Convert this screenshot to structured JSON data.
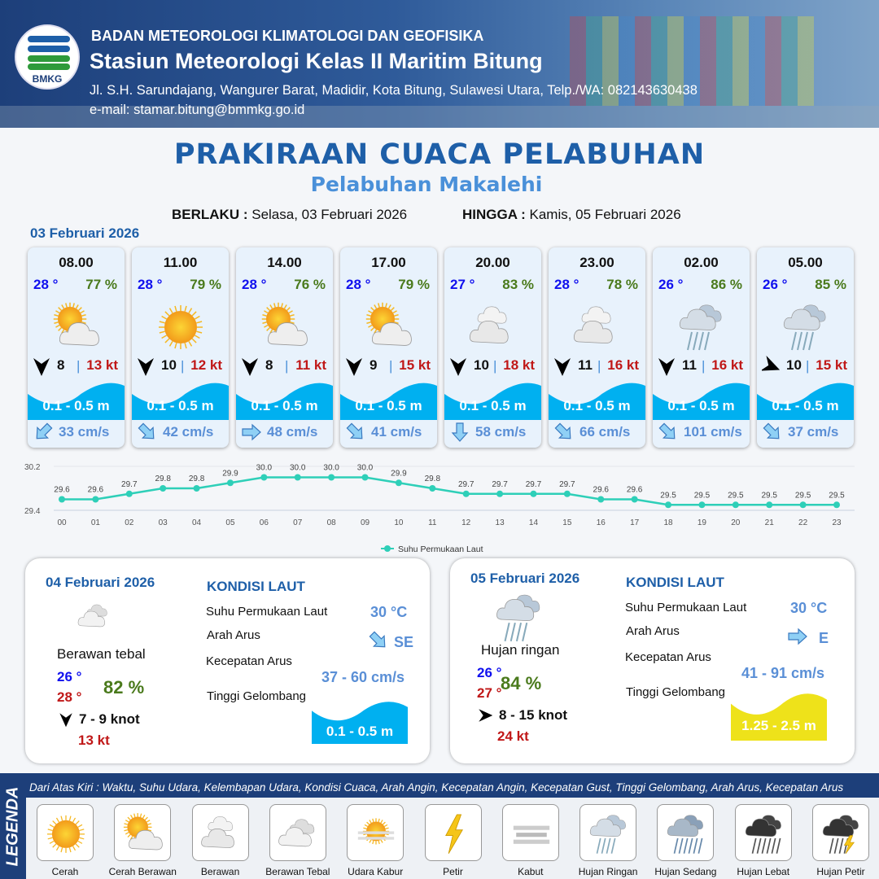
{
  "header": {
    "org": "BADAN METEOROLOGI KLIMATOLOGI DAN GEOFISIKA",
    "station": "Stasiun Meteorologi Kelas II Maritim Bitung",
    "address": "Jl. S.H. Sarundajang, Wangurer Barat, Madidir, Kota Bitung, Sulawesi Utara, Telp./WA: 082143630438",
    "email": "e-mail: stamar.bitung@bmmkg.go.id",
    "logo_text": "BMKG"
  },
  "title": "PRAKIRAAN CUACA PELABUHAN",
  "subtitle": "Pelabuhan Makalehi",
  "validity": {
    "from_label": "BERLAKU :",
    "from": "Selasa, 03 Februari 2026",
    "to_label": "HINGGA :",
    "to": "Kamis, 05 Februari 2026"
  },
  "day1_date": "03 Februari 2026",
  "forecasts": [
    {
      "time": "08.00",
      "temp": "28 °",
      "hum": "77 %",
      "icon": "cerah-berawan",
      "wind_dir": "S",
      "wind": "8",
      "gust": "13 kt",
      "wave": "0.1 - 0.5 m",
      "current_dir": "SW",
      "current": "33 cm/s"
    },
    {
      "time": "11.00",
      "temp": "28 °",
      "hum": "79 %",
      "icon": "cerah",
      "wind_dir": "S",
      "wind": "10",
      "gust": "12 kt",
      "wave": "0.1 - 0.5 m",
      "current_dir": "SE",
      "current": "42 cm/s"
    },
    {
      "time": "14.00",
      "temp": "28 °",
      "hum": "76 %",
      "icon": "cerah-berawan",
      "wind_dir": "S",
      "wind": "8",
      "gust": "11 kt",
      "wave": "0.1 - 0.5 m",
      "current_dir": "E",
      "current": "48 cm/s"
    },
    {
      "time": "17.00",
      "temp": "28 °",
      "hum": "79 %",
      "icon": "cerah-berawan",
      "wind_dir": "S",
      "wind": "9",
      "gust": "15 kt",
      "wave": "0.1 - 0.5 m",
      "current_dir": "SE",
      "current": "41 cm/s"
    },
    {
      "time": "20.00",
      "temp": "27 °",
      "hum": "83 %",
      "icon": "berawan",
      "wind_dir": "S",
      "wind": "10",
      "gust": "18 kt",
      "wave": "0.1 - 0.5 m",
      "current_dir": "S",
      "current": "58 cm/s"
    },
    {
      "time": "23.00",
      "temp": "28 °",
      "hum": "78 %",
      "icon": "berawan",
      "wind_dir": "S",
      "wind": "11",
      "gust": "16 kt",
      "wave": "0.1 - 0.5 m",
      "current_dir": "SE",
      "current": "66 cm/s"
    },
    {
      "time": "02.00",
      "temp": "26 °",
      "hum": "86 %",
      "icon": "hujan-ringan",
      "wind_dir": "S",
      "wind": "11",
      "gust": "16 kt",
      "wave": "0.1 - 0.5 m",
      "current_dir": "SE",
      "current": "101 cm/s"
    },
    {
      "time": "05.00",
      "temp": "26 °",
      "hum": "85 %",
      "icon": "hujan-ringan",
      "wind_dir": "ESE",
      "wind": "10",
      "gust": "15 kt",
      "wave": "0.1 - 0.5 m",
      "current_dir": "SE",
      "current": "37 cm/s"
    }
  ],
  "chart_data": {
    "type": "line",
    "x": [
      "00",
      "01",
      "02",
      "03",
      "04",
      "05",
      "06",
      "07",
      "08",
      "09",
      "10",
      "11",
      "12",
      "13",
      "14",
      "15",
      "16",
      "17",
      "18",
      "19",
      "20",
      "21",
      "22",
      "23"
    ],
    "series": [
      {
        "name": "Suhu Permukaan Laut",
        "values": [
          29.6,
          29.6,
          29.7,
          29.8,
          29.8,
          29.9,
          30.0,
          30.0,
          30.0,
          30.0,
          29.9,
          29.8,
          29.7,
          29.7,
          29.7,
          29.7,
          29.6,
          29.6,
          29.5,
          29.5,
          29.5,
          29.5,
          29.5,
          29.5
        ]
      }
    ],
    "yticks": [
      "29.4",
      "30.2"
    ],
    "ylim": [
      29.4,
      30.2
    ],
    "legend": "bottom",
    "color": "#2ecfb8",
    "grid": true
  },
  "days": [
    {
      "date": "04 Februari 2026",
      "icon": "berawan-tebal",
      "condition": "Berawan tebal",
      "tmin": "26 °",
      "tmax": "28 °",
      "hum": "82 %",
      "wind_dir": "S",
      "wind": "7  - 9 knot",
      "gust": "13 kt",
      "sea_title": "KONDISI LAUT",
      "sst_label": "Suhu Permukaan Laut",
      "sst": "30 °C",
      "cdir_label": "Arah Arus",
      "cdir": "SE",
      "cspd_label": "Kecepatan Arus",
      "cspd": "37 - 60 cm/s",
      "wave_label": "Tinggi Gelombang",
      "wave": "0.1 - 0.5 m",
      "wave_color": "#00b0f0"
    },
    {
      "date": "05 Februari 2026",
      "icon": "hujan-ringan",
      "condition": "Hujan ringan",
      "tmin": "26 °",
      "tmax": "27 °",
      "hum": "84 %",
      "wind_dir": "E",
      "wind": "8  - 15 knot",
      "gust": "24 kt",
      "sea_title": "KONDISI LAUT",
      "sst_label": "Suhu Permukaan Laut",
      "sst": "30 °C",
      "cdir_label": "Arah Arus",
      "cdir": "E",
      "cspd_label": "Kecepatan Arus",
      "cspd": "41 - 91 cm/s",
      "wave_label": "Tinggi Gelombang",
      "wave": "1.25 - 2.5 m",
      "wave_color": "#eee21a"
    }
  ],
  "legend": {
    "title": "LEGENDA",
    "description": "Dari Atas Kiri : Waktu, Suhu Udara, Kelembapan Udara, Kondisi Cuaca, Arah Angin, Kecepatan Angin, Kecepatan Gust, Tinggi Gelombang, Arah Arus, Kecepatan Arus",
    "items": [
      {
        "label": "Cerah",
        "icon": "cerah"
      },
      {
        "label": "Cerah Berawan",
        "icon": "cerah-berawan"
      },
      {
        "label": "Berawan",
        "icon": "berawan"
      },
      {
        "label": "Berawan Tebal",
        "icon": "berawan-tebal"
      },
      {
        "label": "Udara Kabur",
        "icon": "udara-kabur"
      },
      {
        "label": "Petir",
        "icon": "petir"
      },
      {
        "label": "Kabut",
        "icon": "kabut"
      },
      {
        "label": "Hujan Ringan",
        "icon": "hujan-ringan"
      },
      {
        "label": "Hujan Sedang",
        "icon": "hujan-sedang"
      },
      {
        "label": "Hujan Lebat",
        "icon": "hujan-lebat"
      },
      {
        "label": "Hujan Petir",
        "icon": "hujan-petir"
      }
    ]
  },
  "colors": {
    "brand": "#1e5fa8",
    "temp": "#1010ee",
    "humidity": "#4a7a1c",
    "gust": "#c01818",
    "wave": "#00b0f0",
    "current": "#5a8fd6"
  }
}
